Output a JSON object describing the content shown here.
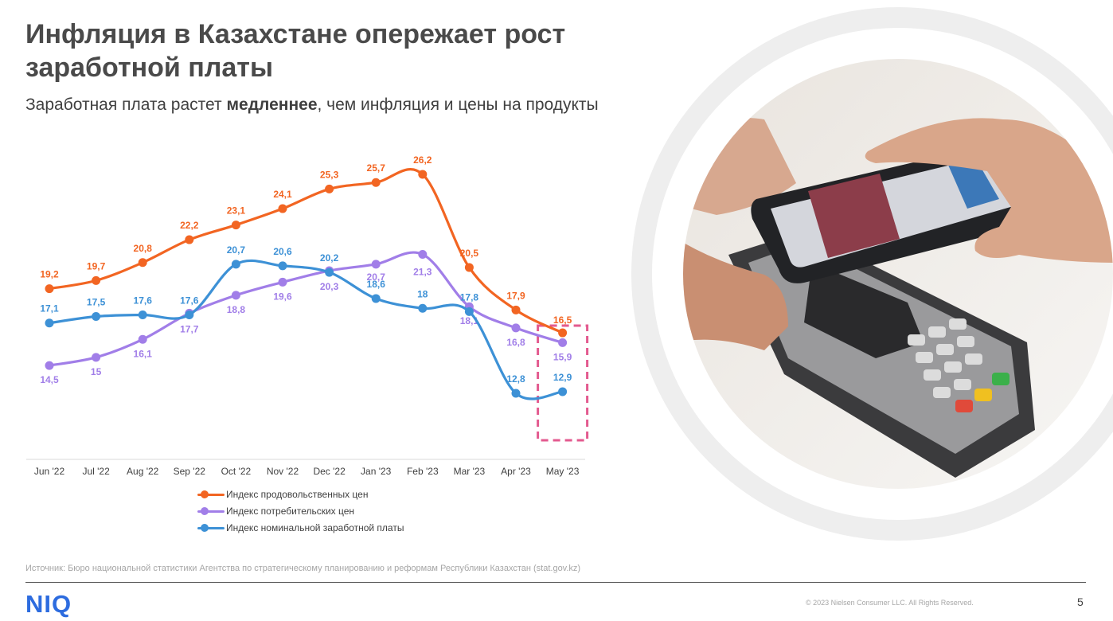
{
  "header": {
    "title": "Инфляция в Казахстане опережает рост заработной платы",
    "subtitle_before": "Заработная плата растет ",
    "subtitle_bold": "медленнее",
    "subtitle_after": ", чем инфляция и цены на продукты"
  },
  "chart_data": {
    "type": "line",
    "categories": [
      "Jun '22",
      "Jul '22",
      "Aug '22",
      "Sep '22",
      "Oct '22",
      "Nov '22",
      "Dec '22",
      "Jan '23",
      "Feb '23",
      "Mar '23",
      "Apr '23",
      "May '23"
    ],
    "series": [
      {
        "name": "Индекс продовольственных цен",
        "color": "#f26522",
        "values": [
          19.2,
          19.7,
          20.8,
          22.2,
          23.1,
          24.1,
          25.3,
          25.7,
          26.2,
          20.5,
          17.9,
          16.5
        ],
        "labels": [
          "19,2",
          "19,7",
          "20,8",
          "22,2",
          "23,1",
          "24,1",
          "25,3",
          "25,7",
          "26,2",
          "20,5",
          "17,9",
          "16,5"
        ]
      },
      {
        "name": "Индекс потребительских цен",
        "color": "#a17ee8",
        "values": [
          14.5,
          15,
          16.1,
          17.7,
          18.8,
          19.6,
          20.3,
          20.7,
          21.3,
          18.1,
          16.8,
          15.9
        ],
        "labels": [
          "14,5",
          "15",
          "16,1",
          "17,7",
          "18,8",
          "19,6",
          "20,3",
          "20,7",
          "21,3",
          "18,1",
          "16,8",
          "15,9"
        ]
      },
      {
        "name": "Индекс номинальной заработной платы",
        "color": "#3d91d6",
        "values": [
          17.1,
          17.5,
          17.6,
          17.6,
          20.7,
          20.6,
          20.2,
          18.6,
          18,
          17.8,
          12.8,
          12.9
        ],
        "labels": [
          "17,1",
          "17,5",
          "17,6",
          "17,6",
          "20,7",
          "20,6",
          "20,2",
          "18,6",
          "18",
          "17,8",
          "12,8",
          "12,9"
        ]
      }
    ],
    "ylim": [
      9,
      28
    ],
    "grid": false,
    "legend": "bottom",
    "highlight": {
      "category": "May '23",
      "color": "#e35a8f",
      "style": "dashed"
    }
  },
  "footer": {
    "source": "Источник: Бюро национальной статистики Агентства по стратегическому планированию и реформам Республики Казахстан (stat.gov.kz)",
    "logo": "NIQ",
    "copyright": "© 2023 Nielsen Consumer LLC. All Rights Reserved.",
    "page": "5"
  },
  "colors": {
    "brand": "#2d6cdf",
    "title": "#4a4a4a"
  }
}
